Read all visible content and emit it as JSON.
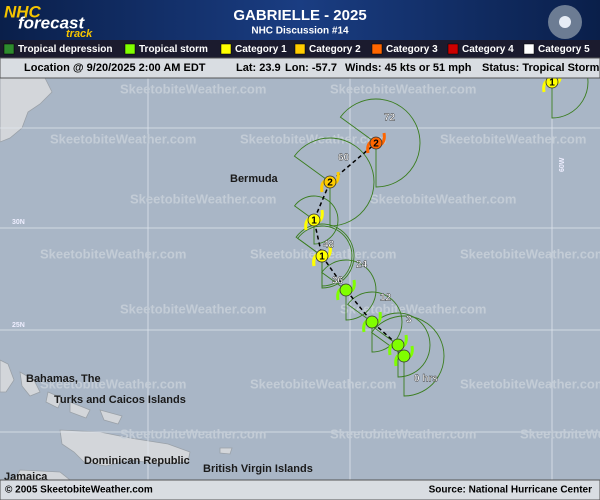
{
  "logo": {
    "line1": "NHC",
    "line2": "forecast",
    "line3": "track"
  },
  "header": {
    "title": "GABRIELLE - 2025",
    "subtitle": "NHC Discussion #14"
  },
  "legend": [
    {
      "name": "Tropical depression",
      "color": "#2e8b2e"
    },
    {
      "name": "Tropical storm",
      "color": "#80ff00"
    },
    {
      "name": "Category 1",
      "color": "#ffff00"
    },
    {
      "name": "Category 2",
      "color": "#ffcc00"
    },
    {
      "name": "Category 3",
      "color": "#ff6600"
    },
    {
      "name": "Category 4",
      "color": "#cc0000"
    },
    {
      "name": "Category 5",
      "color": "#ffffff"
    }
  ],
  "status": {
    "location": "Location @ 9/20/2025 2:00 AM EDT",
    "lat": "Lat: 23.9",
    "lon": "Lon: -57.7",
    "winds": "Winds: 45 kts or 51 mph",
    "status": "Status: Tropical Storm"
  },
  "places": [
    "Bermuda",
    "Bahamas, The",
    "Turks and Caicos Islands",
    "Dominican Republic",
    "British Virgin Islands",
    "Jamaica"
  ],
  "grid_labels": [
    "30N",
    "25N",
    "60W"
  ],
  "watermark": "SkeetobiteWeather.com",
  "track": [
    {
      "label": "0 hrs"
    },
    {
      "label": "3"
    },
    {
      "label": "12"
    },
    {
      "label": "24"
    },
    {
      "label": "36"
    },
    {
      "label": "48",
      "symbol": "1"
    },
    {
      "symbol": "1"
    },
    {
      "label": "60",
      "symbol": "2"
    },
    {
      "label": "72",
      "symbol": "2"
    },
    {
      "symbol": "1"
    }
  ],
  "footer": {
    "copyright": "© 2005 SkeetobiteWeather.com",
    "source": "Source: National Hurricane Center"
  }
}
